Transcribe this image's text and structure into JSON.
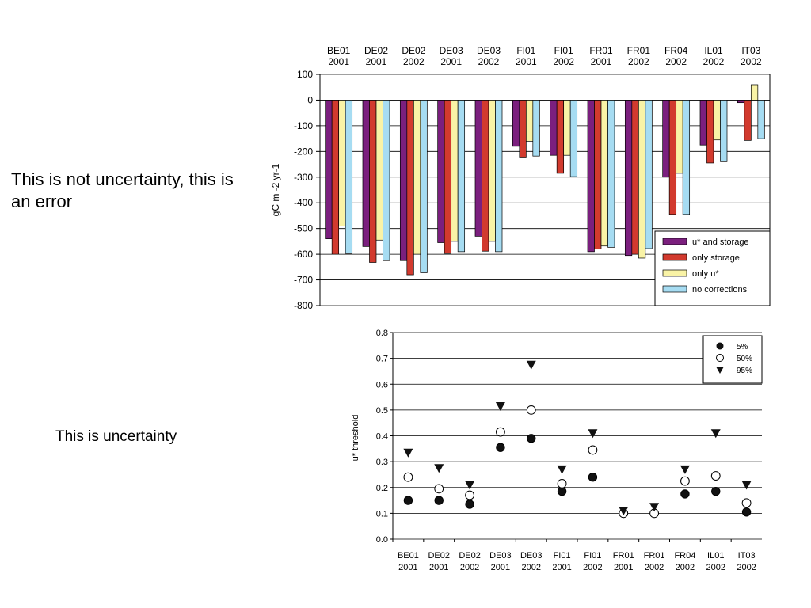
{
  "captions": {
    "error": "This is not uncertainty, this is an error",
    "uncertainty": "This is uncertainty"
  },
  "chart_data": [
    {
      "type": "bar",
      "categories": [
        "BE01 2001",
        "DE02 2001",
        "DE02 2002",
        "DE03 2001",
        "DE03 2002",
        "FI01 2001",
        "FI01 2002",
        "FR01 2001",
        "FR01 2002",
        "FR04 2002",
        "IL01 2002",
        "IT03 2002"
      ],
      "ylabel": "gC m -2 yr-1",
      "ylim": [
        -800,
        100
      ],
      "yticks": [
        100,
        0,
        -100,
        -200,
        -300,
        -400,
        -500,
        -600,
        -700,
        -800
      ],
      "grid": true,
      "legend_position": "bottom-right",
      "series": [
        {
          "name": "u* and storage",
          "color": "#7b1f7e",
          "values": [
            -540,
            -570,
            -625,
            -555,
            -530,
            -180,
            -215,
            -590,
            -605,
            -300,
            -175,
            -10
          ]
        },
        {
          "name": "only storage",
          "color": "#d23a2e",
          "values": [
            -600,
            -632,
            -680,
            -597,
            -588,
            -222,
            -285,
            -580,
            -600,
            -445,
            -245,
            -157
          ]
        },
        {
          "name": "only u*",
          "color": "#f9f3a6",
          "values": [
            -490,
            -545,
            -600,
            -550,
            -550,
            -160,
            -215,
            -568,
            -615,
            -285,
            -155,
            60
          ]
        },
        {
          "name": "no corrections",
          "color": "#a6dcf2",
          "values": [
            -597,
            -625,
            -672,
            -590,
            -590,
            -218,
            -298,
            -573,
            -578,
            -445,
            -240,
            -150
          ]
        }
      ]
    },
    {
      "type": "scatter",
      "categories": [
        "BE01 2001",
        "DE02 2001",
        "DE02 2002",
        "DE03 2001",
        "DE03 2002",
        "FI01 2001",
        "FI01 2002",
        "FR01 2001",
        "FR01 2002",
        "FR04 2002",
        "IL01 2002",
        "IT03 2002"
      ],
      "ylabel": "u* threshold",
      "ylim": [
        0.0,
        0.8
      ],
      "yticks": [
        "0.8",
        "0.7",
        "0.6",
        "0.5",
        "0.4",
        "0.3",
        "0.2",
        "0.1",
        "0.0"
      ],
      "grid": true,
      "legend_position": "top-right",
      "series": [
        {
          "name": "5%",
          "marker": "filled-circle",
          "values": [
            0.15,
            0.15,
            0.135,
            0.355,
            0.39,
            0.185,
            0.24,
            0.1,
            0.1,
            0.175,
            0.185,
            0.105
          ]
        },
        {
          "name": "50%",
          "marker": "open-circle",
          "values": [
            0.24,
            0.195,
            0.17,
            0.415,
            0.5,
            0.215,
            0.345,
            0.1,
            0.1,
            0.225,
            0.245,
            0.14
          ]
        },
        {
          "name": "95%",
          "marker": "down-triangle",
          "values": [
            0.335,
            0.275,
            0.21,
            0.515,
            0.675,
            0.27,
            0.41,
            0.11,
            0.125,
            0.27,
            0.41,
            0.21
          ]
        }
      ]
    }
  ]
}
